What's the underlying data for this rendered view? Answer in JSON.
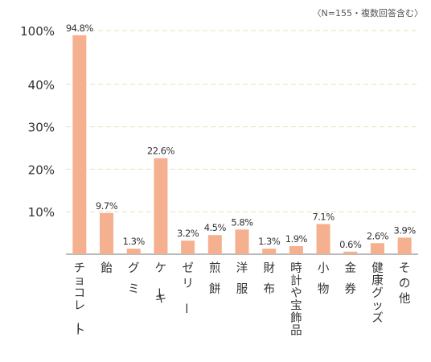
{
  "note": "〈N=155・複数回答含む〉",
  "colors": {
    "bar": "#f4b08f",
    "grid": "#e9dfb9",
    "axis": "#777777",
    "text": "#333333"
  },
  "chart_data": {
    "type": "bar",
    "title": "",
    "xlabel": "",
    "ylabel": "",
    "y_ticks": [
      "100%",
      "40%",
      "30%",
      "20%",
      "10%"
    ],
    "y_tick_values": [
      100,
      40,
      30,
      20,
      10
    ],
    "y_scale": "broken axis: 0–40% linear, then 40% to 100%",
    "grid": true,
    "categories": [
      "チョコレート",
      "飴",
      "グミ",
      "ケーキ",
      "ゼリー",
      "煎餅",
      "洋服",
      "財布",
      "時計や宝飾品",
      "小物",
      "金券",
      "健康グッズ",
      "その他"
    ],
    "values": [
      94.8,
      9.7,
      1.3,
      22.6,
      3.2,
      4.5,
      5.8,
      1.3,
      1.9,
      7.1,
      0.6,
      2.6,
      3.9
    ],
    "value_labels": [
      "94.8%",
      "9.7%",
      "1.3%",
      "22.6%",
      "3.2%",
      "4.5%",
      "5.8%",
      "1.3%",
      "1.9%",
      "7.1%",
      "0.6%",
      "2.6%",
      "3.9%"
    ]
  }
}
